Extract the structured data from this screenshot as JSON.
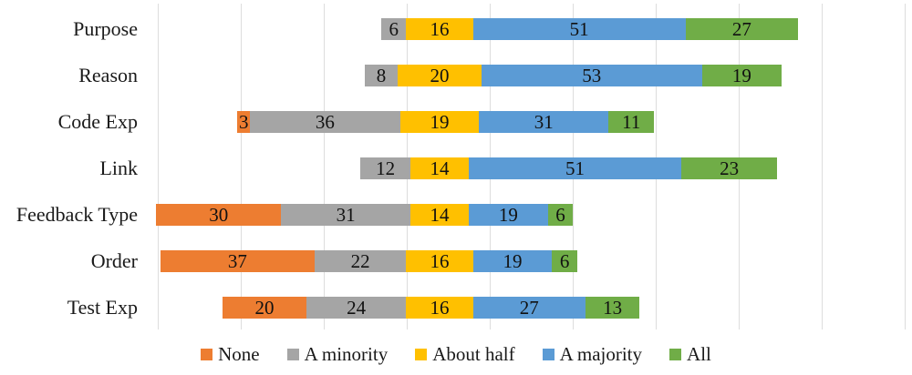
{
  "chart_data": {
    "type": "bar",
    "orientation": "horizontal",
    "variant": "diverging-stacked",
    "title": "",
    "xlabel": "",
    "ylabel": "",
    "categories": [
      "Purpose",
      "Reason",
      "Code Exp",
      "Link",
      "Feedback Type",
      "Order",
      "Test Exp"
    ],
    "series": [
      {
        "name": "None",
        "color": "#ED7D31",
        "values": [
          0,
          0,
          3,
          0,
          30,
          37,
          20
        ]
      },
      {
        "name": "A minority",
        "color": "#A5A5A5",
        "values": [
          6,
          8,
          36,
          12,
          31,
          22,
          24
        ]
      },
      {
        "name": "About half",
        "color": "#FFC000",
        "values": [
          16,
          20,
          19,
          14,
          14,
          16,
          16
        ]
      },
      {
        "name": "A majority",
        "color": "#5B9BD5",
        "values": [
          51,
          53,
          31,
          51,
          19,
          19,
          27
        ]
      },
      {
        "name": "All",
        "color": "#70AD47",
        "values": [
          27,
          19,
          11,
          23,
          6,
          6,
          13
        ]
      }
    ],
    "row_totals": [
      100,
      100,
      100,
      100,
      100,
      100,
      100
    ],
    "alignment": "bars centered on midpoint of 'About half' segment",
    "data_labels": "inside center, zero values hidden",
    "gridlines": {
      "shown": true,
      "interval_units": 20,
      "color": "#dddddd"
    },
    "legend": {
      "position": "bottom"
    }
  }
}
